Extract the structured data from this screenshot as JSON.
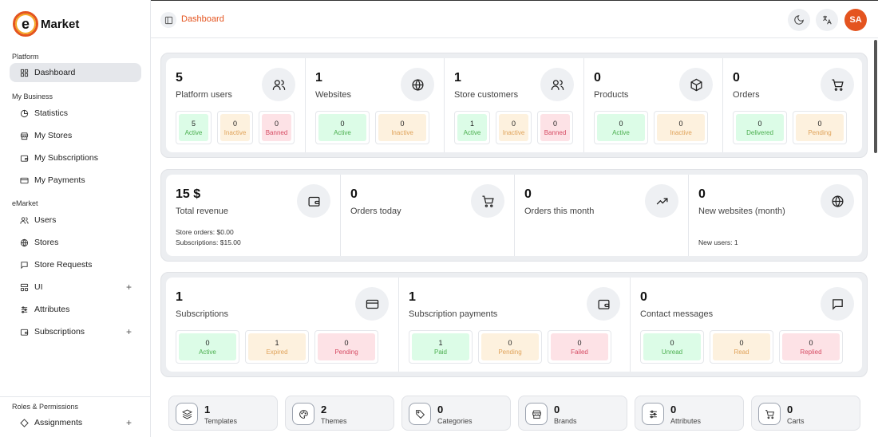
{
  "brand": {
    "logo_letter": "e",
    "name": "Market",
    "accent": "#e4541f"
  },
  "sidebar": {
    "groups": [
      {
        "label": "Platform",
        "items": [
          {
            "label": "Dashboard",
            "icon": "dashboard-icon",
            "active": true
          }
        ]
      },
      {
        "label": "My Business",
        "items": [
          {
            "label": "Statistics",
            "icon": "pie-chart-icon"
          },
          {
            "label": "My Stores",
            "icon": "store-icon"
          },
          {
            "label": "My Subscriptions",
            "icon": "wallet-icon"
          },
          {
            "label": "My Payments",
            "icon": "credit-card-icon"
          }
        ]
      },
      {
        "label": "eMarket",
        "items": [
          {
            "label": "Users",
            "icon": "users-icon"
          },
          {
            "label": "Stores",
            "icon": "globe-icon"
          },
          {
            "label": "Store Requests",
            "icon": "message-icon"
          },
          {
            "label": "UI",
            "icon": "layout-icon",
            "expandable": true
          },
          {
            "label": "Attributes",
            "icon": "sliders-icon"
          },
          {
            "label": "Subscriptions",
            "icon": "wallet-icon",
            "expandable": true
          }
        ]
      },
      {
        "label": "Roles & Permissions",
        "items": [
          {
            "label": "Assignments",
            "icon": "diamond-icon",
            "expandable": true
          }
        ]
      }
    ],
    "expand_symbol": "+"
  },
  "header": {
    "breadcrumb": "Dashboard",
    "avatar_initials": "SA"
  },
  "row1": [
    {
      "value": "5",
      "label": "Platform users",
      "icon": "users-icon",
      "stats": [
        {
          "value": "5",
          "label": "Active",
          "tone": "g"
        },
        {
          "value": "0",
          "label": "Inactive",
          "tone": "o"
        },
        {
          "value": "0",
          "label": "Banned",
          "tone": "r"
        }
      ]
    },
    {
      "value": "1",
      "label": "Websites",
      "icon": "globe-icon",
      "stats": [
        {
          "value": "0",
          "label": "Active",
          "tone": "g"
        },
        {
          "value": "0",
          "label": "Inactive",
          "tone": "o"
        }
      ]
    },
    {
      "value": "1",
      "label": "Store customers",
      "icon": "users-icon",
      "stats": [
        {
          "value": "1",
          "label": "Active",
          "tone": "g"
        },
        {
          "value": "0",
          "label": "Inactive",
          "tone": "o"
        },
        {
          "value": "0",
          "label": "Banned",
          "tone": "r"
        }
      ]
    },
    {
      "value": "0",
      "label": "Products",
      "icon": "package-icon",
      "stats": [
        {
          "value": "0",
          "label": "Active",
          "tone": "g"
        },
        {
          "value": "0",
          "label": "Inactive",
          "tone": "o"
        }
      ]
    },
    {
      "value": "0",
      "label": "Orders",
      "icon": "cart-icon",
      "stats": [
        {
          "value": "0",
          "label": "Delivered",
          "tone": "g"
        },
        {
          "value": "0",
          "label": "Pending",
          "tone": "o"
        }
      ]
    }
  ],
  "row2": [
    {
      "value": "15 $",
      "label": "Total revenue",
      "icon": "wallet-icon",
      "notes": [
        "Store orders: $0.00",
        "Subscriptions: $15.00"
      ]
    },
    {
      "value": "0",
      "label": "Orders today",
      "icon": "cart-icon",
      "notes": []
    },
    {
      "value": "0",
      "label": "Orders this month",
      "icon": "trending-up-icon",
      "notes": []
    },
    {
      "value": "0",
      "label": "New websites (month)",
      "icon": "globe-icon",
      "notes": [
        "New users: 1"
      ]
    }
  ],
  "row3": [
    {
      "value": "1",
      "label": "Subscriptions",
      "icon": "credit-card-icon",
      "stats": [
        {
          "value": "0",
          "label": "Active",
          "tone": "g"
        },
        {
          "value": "1",
          "label": "Expired",
          "tone": "o"
        },
        {
          "value": "0",
          "label": "Pending",
          "tone": "r"
        }
      ]
    },
    {
      "value": "1",
      "label": "Subscription payments",
      "icon": "wallet-icon",
      "stats": [
        {
          "value": "1",
          "label": "Paid",
          "tone": "g"
        },
        {
          "value": "0",
          "label": "Pending",
          "tone": "o"
        },
        {
          "value": "0",
          "label": "Failed",
          "tone": "r"
        }
      ]
    },
    {
      "value": "0",
      "label": "Contact messages",
      "icon": "message-icon",
      "stats": [
        {
          "value": "0",
          "label": "Unread",
          "tone": "g"
        },
        {
          "value": "0",
          "label": "Read",
          "tone": "o"
        },
        {
          "value": "0",
          "label": "Replied",
          "tone": "r"
        }
      ]
    }
  ],
  "tiles": [
    {
      "value": "1",
      "label": "Templates",
      "icon": "layers-icon"
    },
    {
      "value": "2",
      "label": "Themes",
      "icon": "palette-icon"
    },
    {
      "value": "0",
      "label": "Categories",
      "icon": "tag-icon"
    },
    {
      "value": "0",
      "label": "Brands",
      "icon": "store-icon"
    },
    {
      "value": "0",
      "label": "Attributes",
      "icon": "sliders-icon"
    },
    {
      "value": "0",
      "label": "Carts",
      "icon": "cart-icon"
    }
  ]
}
